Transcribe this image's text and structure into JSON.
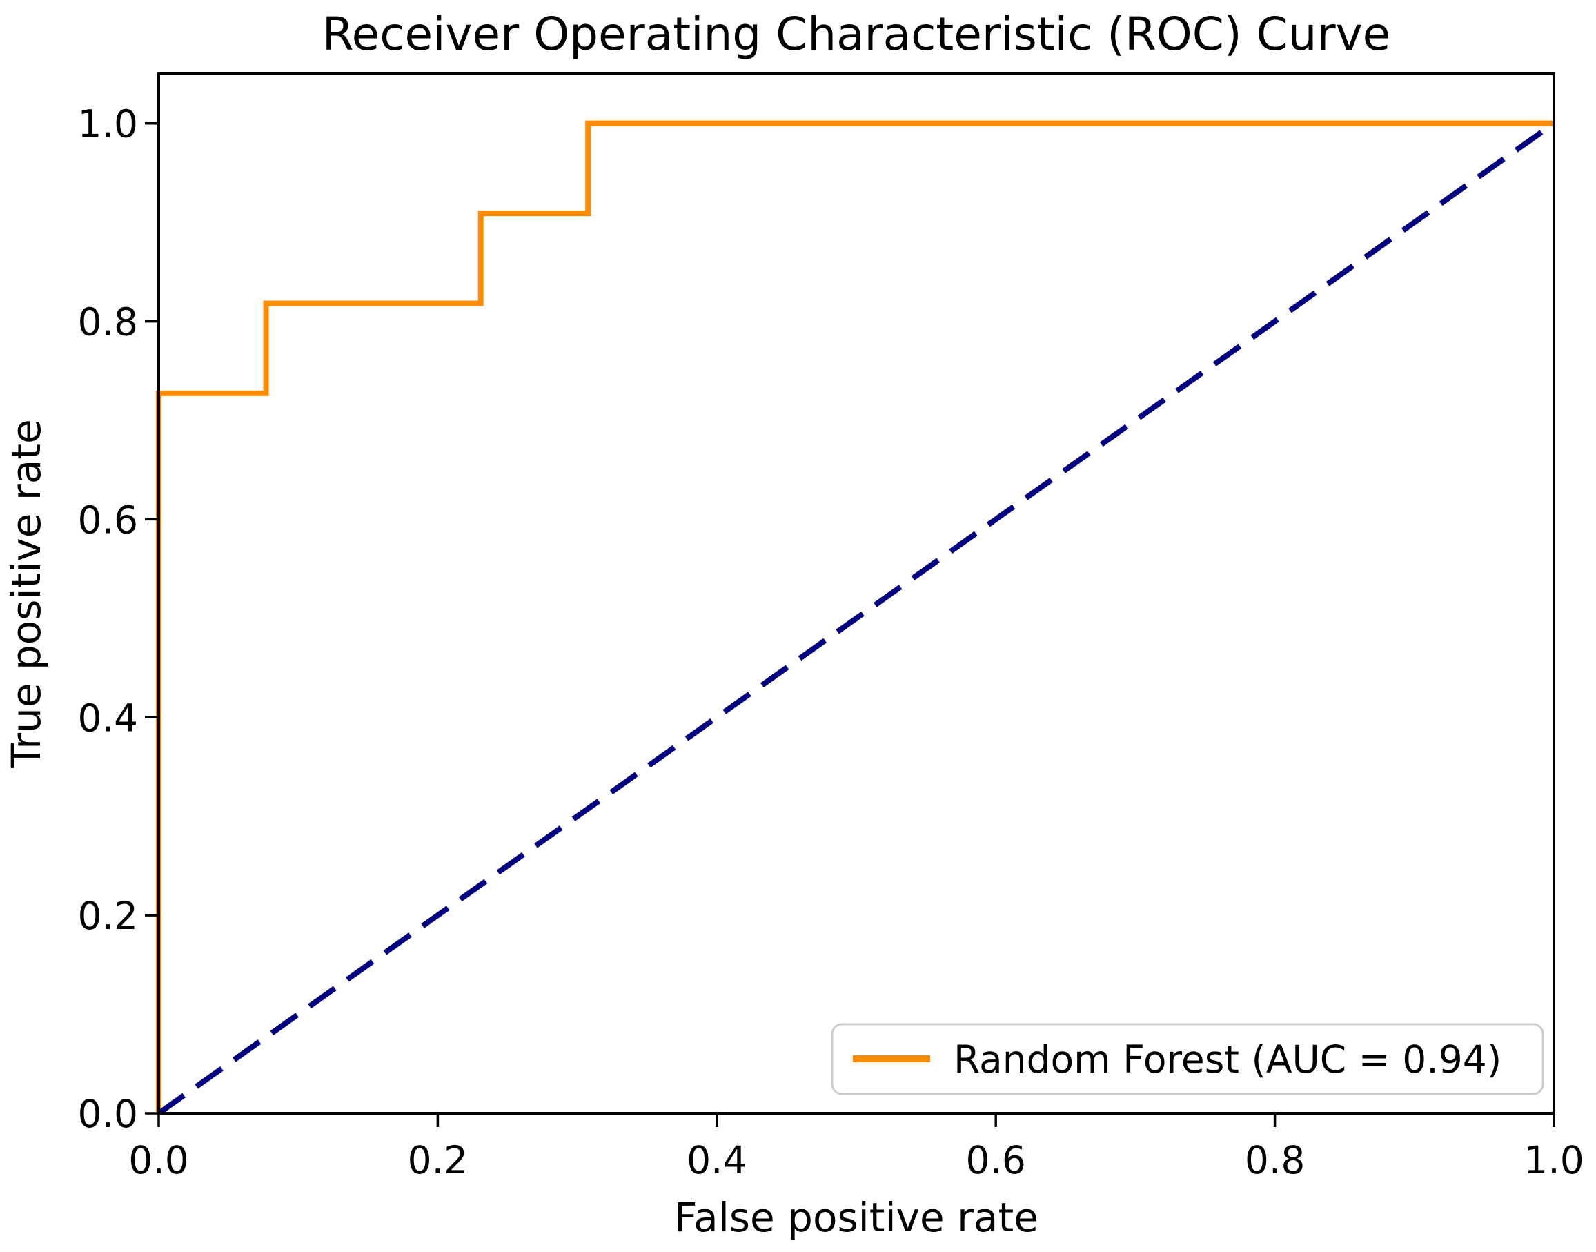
{
  "chart_data": {
    "type": "line",
    "title": "Receiver Operating Characteristic (ROC) Curve",
    "xlabel": "False positive rate",
    "ylabel": "True positive rate",
    "xlim": [
      0.0,
      1.0
    ],
    "ylim": [
      0.0,
      1.05
    ],
    "xticks": [
      "0.0",
      "0.2",
      "0.4",
      "0.6",
      "0.8",
      "1.0"
    ],
    "yticks": [
      "0.0",
      "0.2",
      "0.4",
      "0.6",
      "0.8",
      "1.0"
    ],
    "grid": false,
    "legend_position": "lower right",
    "auc": 0.94,
    "series": [
      {
        "name": "Random Forest (AUC = 0.94)",
        "role": "roc-curve",
        "color": "#ff8c00",
        "style": "solid",
        "x": [
          0.0,
          0.0,
          0.0769,
          0.0769,
          0.2308,
          0.2308,
          0.3077,
          0.3077,
          1.0
        ],
        "y": [
          0.0,
          0.7273,
          0.7273,
          0.8182,
          0.8182,
          0.9091,
          0.9091,
          1.0,
          1.0
        ],
        "in_legend": true
      },
      {
        "name": "chance diagonal",
        "role": "chance-diagonal",
        "color": "#000080",
        "style": "dashed",
        "x": [
          0.0,
          1.0
        ],
        "y": [
          0.0,
          1.0
        ],
        "in_legend": false
      }
    ],
    "legend": [
      "Random Forest (AUC = 0.94)"
    ]
  },
  "colors": {
    "roc_line": "#ff8c00",
    "chance_line": "#000080",
    "spine": "#000000",
    "legend_border": "#cccccc",
    "background": "#ffffff"
  }
}
